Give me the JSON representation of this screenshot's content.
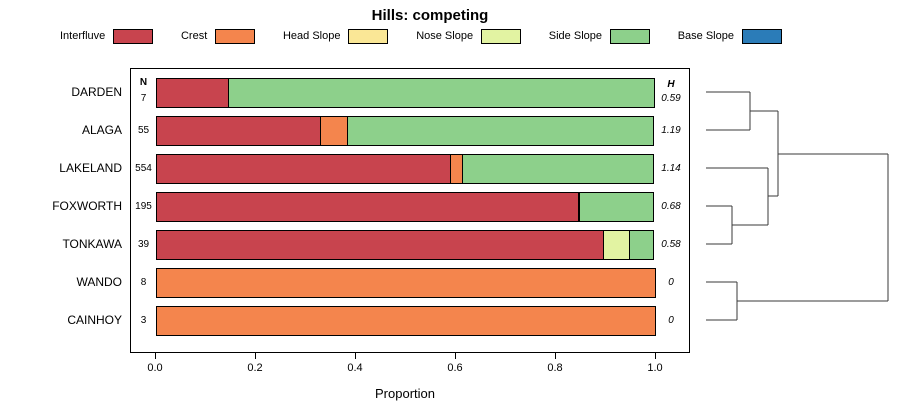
{
  "title": "Hills: competing",
  "legend": [
    {
      "label": "Interfluve",
      "color": "#C8444E"
    },
    {
      "label": "Crest",
      "color": "#F4854D"
    },
    {
      "label": "Head Slope",
      "color": "#FAE796"
    },
    {
      "label": "Nose Slope",
      "color": "#E2F3A2"
    },
    {
      "label": "Side Slope",
      "color": "#8DD08B"
    },
    {
      "label": "Base Slope",
      "color": "#2B7CB8"
    }
  ],
  "chart_data": {
    "type": "bar",
    "stacked": true,
    "orientation": "horizontal",
    "title": "Hills: competing",
    "xlabel": "Proportion",
    "xlim": [
      0,
      1
    ],
    "grid": false,
    "n_header": "N",
    "h_header": "H",
    "categories": [
      "Interfluve",
      "Crest",
      "Head Slope",
      "Nose Slope",
      "Side Slope",
      "Base Slope"
    ],
    "x_ticks": [
      {
        "label": "0.0",
        "value": 0.0
      },
      {
        "label": "0.2",
        "value": 0.2
      },
      {
        "label": "0.4",
        "value": 0.4
      },
      {
        "label": "0.6",
        "value": 0.6
      },
      {
        "label": "0.8",
        "value": 0.8
      },
      {
        "label": "1.0",
        "value": 1.0
      }
    ],
    "rows": [
      {
        "name": "DARDEN",
        "n": "7",
        "h": "0.59",
        "segments": [
          {
            "cat": "Interfluve",
            "value": 0.145
          },
          {
            "cat": "Side Slope",
            "value": 0.855
          }
        ]
      },
      {
        "name": "ALAGA",
        "n": "55",
        "h": "1.19",
        "segments": [
          {
            "cat": "Interfluve",
            "value": 0.33
          },
          {
            "cat": "Crest",
            "value": 0.055
          },
          {
            "cat": "Side Slope",
            "value": 0.615
          }
        ]
      },
      {
        "name": "LAKELAND",
        "n": "554",
        "h": "1.14",
        "segments": [
          {
            "cat": "Interfluve",
            "value": 0.59
          },
          {
            "cat": "Crest",
            "value": 0.025
          },
          {
            "cat": "Side Slope",
            "value": 0.385
          }
        ]
      },
      {
        "name": "FOXWORTH",
        "n": "195",
        "h": "0.68",
        "segments": [
          {
            "cat": "Interfluve",
            "value": 0.845
          },
          {
            "cat": "Head Slope",
            "value": 0.005
          },
          {
            "cat": "Side Slope",
            "value": 0.15
          }
        ]
      },
      {
        "name": "TONKAWA",
        "n": "39",
        "h": "0.58",
        "segments": [
          {
            "cat": "Interfluve",
            "value": 0.895
          },
          {
            "cat": "Nose Slope",
            "value": 0.055
          },
          {
            "cat": "Side Slope",
            "value": 0.05
          }
        ]
      },
      {
        "name": "WANDO",
        "n": "8",
        "h": "0",
        "segments": [
          {
            "cat": "Crest",
            "value": 1.0
          }
        ]
      },
      {
        "name": "CAINHOY",
        "n": "3",
        "h": "0",
        "segments": [
          {
            "cat": "Crest",
            "value": 1.0
          }
        ]
      }
    ],
    "dendrogram_segments": [
      [
        11,
        24,
        55,
        24
      ],
      [
        11,
        62,
        55,
        62
      ],
      [
        55,
        24,
        55,
        62
      ],
      [
        11,
        138,
        37,
        138
      ],
      [
        11,
        176,
        37,
        176
      ],
      [
        37,
        138,
        37,
        176
      ],
      [
        11,
        100,
        73,
        100
      ],
      [
        37,
        157,
        73,
        157
      ],
      [
        73,
        100,
        73,
        157
      ],
      [
        55,
        43,
        83,
        43
      ],
      [
        73,
        128,
        83,
        128
      ],
      [
        83,
        43,
        83,
        128
      ],
      [
        11,
        214,
        42,
        214
      ],
      [
        11,
        252,
        42,
        252
      ],
      [
        42,
        214,
        42,
        252
      ],
      [
        83,
        86,
        193,
        86
      ],
      [
        42,
        233,
        193,
        233
      ],
      [
        193,
        86,
        193,
        233
      ]
    ]
  }
}
